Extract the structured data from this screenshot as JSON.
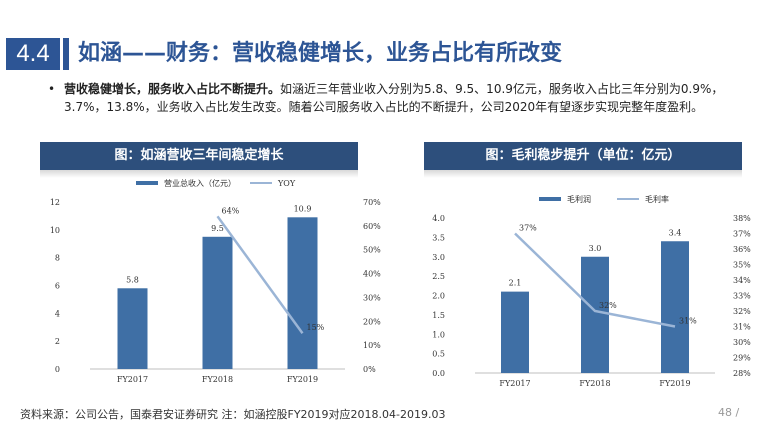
{
  "header": {
    "section_number": "4.4",
    "title": "如涵——财务：营收稳健增长，业务占比有所改变"
  },
  "body": {
    "bullet": "•",
    "lead": "营收稳健增长，服务收入占比不断提升。",
    "text": "如涵近三年营业收入分别为5.8、9.5、10.9亿元，服务收入占比三年分别为0.9%，3.7%，13.8%，业务收入占比发生改变。随着公司服务收入占比的不断提升，公司2020年有望逐步实现完整年度盈利。"
  },
  "charts": {
    "left_header": "图：如涵营收三年间稳定增长",
    "right_header": "图：毛利稳步提升（单位：亿元）"
  },
  "chart_data": [
    {
      "type": "bar",
      "title": "图：如涵营收三年间稳定增长",
      "categories": [
        "FY2017",
        "FY2018",
        "FY2019"
      ],
      "series": [
        {
          "name": "营业总收入（亿元）",
          "type": "bar",
          "axis": "left",
          "values": [
            5.8,
            9.5,
            10.9
          ],
          "labels": [
            "5.8",
            "9.5",
            "10.9"
          ]
        },
        {
          "name": "YOY",
          "type": "line",
          "axis": "right",
          "values": [
            null,
            64,
            15
          ],
          "labels": [
            "",
            "64%",
            "15%"
          ]
        }
      ],
      "y_left": {
        "min": 0,
        "max": 12,
        "ticks": [
          "0",
          "2",
          "4",
          "6",
          "8",
          "10",
          "12"
        ]
      },
      "y_right": {
        "min": 0,
        "max": 70,
        "ticks": [
          "0%",
          "10%",
          "20%",
          "30%",
          "40%",
          "50%",
          "60%",
          "70%"
        ]
      },
      "legend": "top",
      "colors": {
        "bar": "#3f6fa5",
        "line": "#9bb5d6"
      }
    },
    {
      "type": "bar",
      "title": "图：毛利稳步提升（单位：亿元）",
      "categories": [
        "FY2017",
        "FY2018",
        "FY2019"
      ],
      "series": [
        {
          "name": "毛利润",
          "type": "bar",
          "axis": "left",
          "values": [
            2.1,
            3.0,
            3.4
          ],
          "labels": [
            "2.1",
            "3.0",
            "3.4"
          ]
        },
        {
          "name": "毛利率",
          "type": "line",
          "axis": "right",
          "values": [
            37,
            32,
            31
          ],
          "labels": [
            "37%",
            "32%",
            "31%"
          ]
        }
      ],
      "y_left": {
        "min": 0,
        "max": 4,
        "ticks": [
          "0.0",
          "0.5",
          "1.0",
          "1.5",
          "2.0",
          "2.5",
          "3.0",
          "3.5",
          "4.0"
        ]
      },
      "y_right": {
        "min": 28,
        "max": 38,
        "ticks": [
          "28%",
          "29%",
          "30%",
          "31%",
          "32%",
          "33%",
          "34%",
          "35%",
          "36%",
          "37%",
          "38%"
        ]
      },
      "legend": "top",
      "colors": {
        "bar": "#3f6fa5",
        "line": "#9bb5d6"
      }
    }
  ],
  "footer": {
    "source": "资料来源：公司公告，国泰君安证券研究 注：如涵控股FY2019对应2018.04-2019.03",
    "page": "48 /"
  }
}
